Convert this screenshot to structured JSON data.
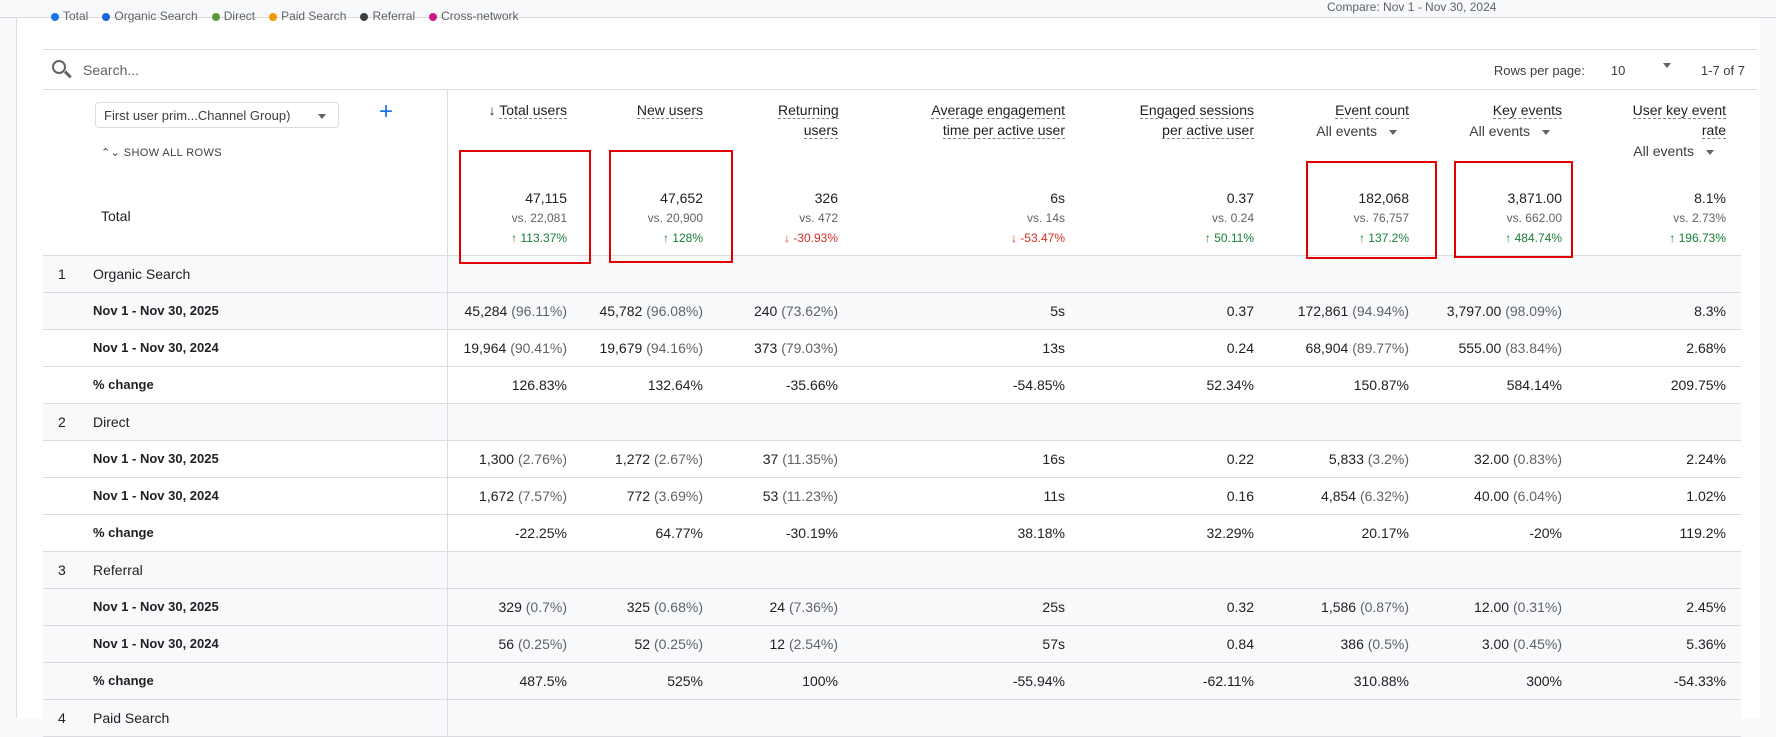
{
  "compare_label": "Compare: Nov 1 - Nov 30, 2024",
  "legend": [
    {
      "label": "Total",
      "color": "#1a73e8"
    },
    {
      "label": "Organic Search",
      "color": "#1967d2"
    },
    {
      "label": "Direct",
      "color": "#5c9a3c"
    },
    {
      "label": "Paid Search",
      "color": "#f29900"
    },
    {
      "label": "Referral",
      "color": "#3c4043"
    },
    {
      "label": "Cross-network",
      "color": "#d01884"
    }
  ],
  "search": {
    "placeholder": "Search..."
  },
  "pagination": {
    "rows_label": "Rows per page:",
    "rows_value": "10",
    "range": "1-7 of 7"
  },
  "dimension": {
    "label": "First user prim...Channel Group)",
    "show_all": "SHOW ALL ROWS",
    "add": "+"
  },
  "columns": [
    {
      "label": "Total users",
      "sorted": true
    },
    {
      "label": "New users"
    },
    {
      "label": "Returning users"
    },
    {
      "label": "Average engagement time per active user"
    },
    {
      "label": "Engaged sessions per active user"
    },
    {
      "label": "Event count",
      "filter": "All events"
    },
    {
      "label": "Key events",
      "filter": "All events"
    },
    {
      "label": "User key event rate",
      "filter": "All events"
    }
  ],
  "totals": {
    "label": "Total",
    "values": [
      {
        "v": "47,115",
        "vs": "vs. 22,081",
        "chg": "113.37%",
        "dir": "up"
      },
      {
        "v": "47,652",
        "vs": "vs. 20,900",
        "chg": "128%",
        "dir": "up"
      },
      {
        "v": "326",
        "vs": "vs. 472",
        "chg": "-30.93%",
        "dir": "down"
      },
      {
        "v": "6s",
        "vs": "vs. 14s",
        "chg": "-53.47%",
        "dir": "down"
      },
      {
        "v": "0.37",
        "vs": "vs. 0.24",
        "chg": "50.11%",
        "dir": "up"
      },
      {
        "v": "182,068",
        "vs": "vs. 76,757",
        "chg": "137.2%",
        "dir": "up"
      },
      {
        "v": "3,871.00",
        "vs": "vs. 662.00",
        "chg": "484.74%",
        "dir": "up"
      },
      {
        "v": "8.1%",
        "vs": "vs. 2.73%",
        "chg": "196.73%",
        "dir": "up"
      }
    ]
  },
  "groups": [
    {
      "index": "1",
      "name": "Organic Search",
      "rows": [
        {
          "label": "Nov 1 - Nov 30, 2025",
          "cells": [
            [
              "45,284",
              "(96.11%)"
            ],
            [
              "45,782",
              "(96.08%)"
            ],
            [
              "240",
              "(73.62%)"
            ],
            [
              "5s"
            ],
            [
              "0.37"
            ],
            [
              "172,861",
              "(94.94%)"
            ],
            [
              "3,797.00",
              "(98.09%)"
            ],
            [
              "8.3%"
            ]
          ]
        },
        {
          "label": "Nov 1 - Nov 30, 2024",
          "cells": [
            [
              "19,964",
              "(90.41%)"
            ],
            [
              "19,679",
              "(94.16%)"
            ],
            [
              "373",
              "(79.03%)"
            ],
            [
              "13s"
            ],
            [
              "0.24"
            ],
            [
              "68,904",
              "(89.77%)"
            ],
            [
              "555.00",
              "(83.84%)"
            ],
            [
              "2.68%"
            ]
          ]
        },
        {
          "label": "% change",
          "cells": [
            [
              "126.83%"
            ],
            [
              "132.64%"
            ],
            [
              "-35.66%"
            ],
            [
              "-54.85%"
            ],
            [
              "52.34%"
            ],
            [
              "150.87%"
            ],
            [
              "584.14%"
            ],
            [
              "209.75%"
            ]
          ]
        }
      ]
    },
    {
      "index": "2",
      "name": "Direct",
      "rows": [
        {
          "label": "Nov 1 - Nov 30, 2025",
          "cells": [
            [
              "1,300",
              "(2.76%)"
            ],
            [
              "1,272",
              "(2.67%)"
            ],
            [
              "37",
              "(11.35%)"
            ],
            [
              "16s"
            ],
            [
              "0.22"
            ],
            [
              "5,833",
              "(3.2%)"
            ],
            [
              "32.00",
              "(0.83%)"
            ],
            [
              "2.24%"
            ]
          ]
        },
        {
          "label": "Nov 1 - Nov 30, 2024",
          "cells": [
            [
              "1,672",
              "(7.57%)"
            ],
            [
              "772",
              "(3.69%)"
            ],
            [
              "53",
              "(11.23%)"
            ],
            [
              "11s"
            ],
            [
              "0.16"
            ],
            [
              "4,854",
              "(6.32%)"
            ],
            [
              "40.00",
              "(6.04%)"
            ],
            [
              "1.02%"
            ]
          ]
        },
        {
          "label": "% change",
          "cells": [
            [
              "-22.25%"
            ],
            [
              "64.77%"
            ],
            [
              "-30.19%"
            ],
            [
              "38.18%"
            ],
            [
              "32.29%"
            ],
            [
              "20.17%"
            ],
            [
              "-20%"
            ],
            [
              "119.2%"
            ]
          ]
        }
      ]
    },
    {
      "index": "3",
      "name": "Referral",
      "rows": [
        {
          "label": "Nov 1 - Nov 30, 2025",
          "cells": [
            [
              "329",
              "(0.7%)"
            ],
            [
              "325",
              "(0.68%)"
            ],
            [
              "24",
              "(7.36%)"
            ],
            [
              "25s"
            ],
            [
              "0.32"
            ],
            [
              "1,586",
              "(0.87%)"
            ],
            [
              "12.00",
              "(0.31%)"
            ],
            [
              "2.45%"
            ]
          ]
        },
        {
          "label": "Nov 1 - Nov 30, 2024",
          "cells": [
            [
              "56",
              "(0.25%)"
            ],
            [
              "52",
              "(0.25%)"
            ],
            [
              "12",
              "(2.54%)"
            ],
            [
              "57s"
            ],
            [
              "0.84"
            ],
            [
              "386",
              "(0.5%)"
            ],
            [
              "3.00",
              "(0.45%)"
            ],
            [
              "5.36%"
            ]
          ]
        },
        {
          "label": "% change",
          "cells": [
            [
              "487.5%"
            ],
            [
              "525%"
            ],
            [
              "100%"
            ],
            [
              "-55.94%"
            ],
            [
              "-62.11%"
            ],
            [
              "310.88%"
            ],
            [
              "300%"
            ],
            [
              "-54.33%"
            ]
          ]
        }
      ]
    },
    {
      "index": "4",
      "name": "Paid Search",
      "rows": []
    }
  ]
}
